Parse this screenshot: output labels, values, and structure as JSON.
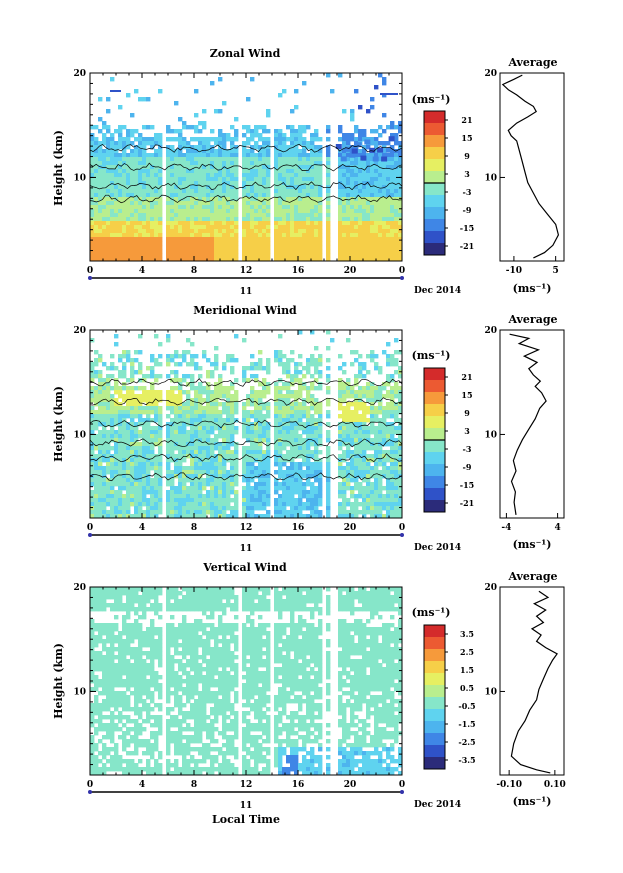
{
  "figure": {
    "x_axis_label": "Local Time",
    "date_label": "Dec 2014",
    "day_label": "11"
  },
  "colors": {
    "scale": [
      "#2b2b7a",
      "#2f52c8",
      "#3f86e6",
      "#4db4ee",
      "#5fd3ef",
      "#86e6c9",
      "#b9ee8e",
      "#e6ef62",
      "#f6cf48",
      "#f69a3b",
      "#ec5a32",
      "#d42b2b"
    ]
  },
  "chart_data": [
    {
      "type": "heatmap",
      "title": "Zonal Wind",
      "ylabel": "Height (km)",
      "x_ticks": [
        "0",
        "4",
        "8",
        "12",
        "16",
        "20",
        "0"
      ],
      "xlim": [
        0,
        24
      ],
      "y_ticks": [
        "20",
        "10"
      ],
      "ylim": [
        2,
        20
      ],
      "unit_label": "(ms⁻¹)",
      "colorbar_ticks": [
        "21",
        "15",
        "9",
        "3",
        "-3",
        "-9",
        "-15",
        "-21"
      ],
      "colorbar_range": [
        -24,
        24
      ],
      "profile": {
        "title": "Average",
        "x_ticks": [
          "-10",
          "5"
        ],
        "xlim": [
          -15,
          8
        ],
        "unit_label": "(ms⁻¹)",
        "y_ticks": [
          "20",
          "10"
        ],
        "points": [
          [
            -3,
            2.3
          ],
          [
            1,
            2.8
          ],
          [
            4,
            3.5
          ],
          [
            6,
            4.5
          ],
          [
            5,
            5.5
          ],
          [
            2,
            6.5
          ],
          [
            -1,
            7.5
          ],
          [
            -3,
            8.5
          ],
          [
            -5,
            9.5
          ],
          [
            -6,
            10.5
          ],
          [
            -7,
            11.5
          ],
          [
            -8,
            12.5
          ],
          [
            -9,
            13.5
          ],
          [
            -11,
            14.0
          ],
          [
            -12,
            14.5
          ],
          [
            -9,
            15.2
          ],
          [
            -5,
            15.8
          ],
          [
            -2,
            16.3
          ],
          [
            -3,
            16.8
          ],
          [
            -6,
            17.3
          ],
          [
            -9,
            17.9
          ],
          [
            -12,
            18.4
          ],
          [
            -14,
            18.9
          ],
          [
            -10,
            19.4
          ],
          [
            -7,
            19.8
          ]
        ]
      }
    },
    {
      "type": "heatmap",
      "title": "Meridional Wind",
      "ylabel": "Height (km)",
      "x_ticks": [
        "0",
        "4",
        "8",
        "12",
        "16",
        "20",
        "0"
      ],
      "xlim": [
        0,
        24
      ],
      "y_ticks": [
        "20",
        "10"
      ],
      "ylim": [
        2,
        20
      ],
      "unit_label": "(ms⁻¹)",
      "colorbar_ticks": [
        "21",
        "15",
        "9",
        "3",
        "-3",
        "-9",
        "-15",
        "-21"
      ],
      "colorbar_range": [
        -24,
        24
      ],
      "profile": {
        "title": "Average",
        "x_ticks": [
          "-4",
          "4"
        ],
        "xlim": [
          -5,
          5
        ],
        "unit_label": "(ms⁻¹)",
        "y_ticks": [
          "20",
          "10"
        ],
        "points": [
          [
            -2.5,
            2.3
          ],
          [
            -2.8,
            3.5
          ],
          [
            -2.6,
            4.5
          ],
          [
            -3.2,
            5.5
          ],
          [
            -2.5,
            6.5
          ],
          [
            -2.9,
            7.5
          ],
          [
            -2.3,
            8.5
          ],
          [
            -1.5,
            9.5
          ],
          [
            -0.5,
            10.5
          ],
          [
            0.5,
            11.5
          ],
          [
            1.2,
            12.5
          ],
          [
            2.2,
            13.2
          ],
          [
            1.5,
            14.0
          ],
          [
            0.5,
            14.6
          ],
          [
            1.3,
            15.1
          ],
          [
            0.2,
            15.7
          ],
          [
            -0.5,
            16.3
          ],
          [
            0.8,
            16.9
          ],
          [
            -1.2,
            17.5
          ],
          [
            1.0,
            18.1
          ],
          [
            -2.0,
            18.7
          ],
          [
            -0.5,
            19.2
          ],
          [
            -3.5,
            19.6
          ]
        ]
      }
    },
    {
      "type": "heatmap",
      "title": "Vertical Wind",
      "ylabel": "Height (km)",
      "x_ticks": [
        "0",
        "4",
        "8",
        "12",
        "16",
        "20",
        "0"
      ],
      "xlim": [
        0,
        24
      ],
      "y_ticks": [
        "20",
        "10"
      ],
      "ylim": [
        2,
        20
      ],
      "unit_label": "(ms⁻¹)",
      "colorbar_ticks": [
        "3.5",
        "2.5",
        "1.5",
        "0.5",
        "-0.5",
        "-1.5",
        "-2.5",
        "-3.5"
      ],
      "colorbar_range": [
        -4,
        4
      ],
      "profile": {
        "title": "Average",
        "x_ticks": [
          "-0.10",
          "0.10"
        ],
        "xlim": [
          -0.14,
          0.14
        ],
        "unit_label": "(ms⁻¹)",
        "y_ticks": [
          "20",
          "10"
        ],
        "points": [
          [
            0.08,
            2.2
          ],
          [
            0.02,
            2.5
          ],
          [
            -0.05,
            3.0
          ],
          [
            -0.09,
            3.8
          ],
          [
            -0.08,
            5.0
          ],
          [
            -0.06,
            6.2
          ],
          [
            -0.03,
            7.2
          ],
          [
            -0.01,
            8.2
          ],
          [
            0.02,
            9.2
          ],
          [
            0.03,
            10.2
          ],
          [
            0.05,
            11.2
          ],
          [
            0.07,
            12.2
          ],
          [
            0.09,
            13.0
          ],
          [
            0.11,
            13.6
          ],
          [
            0.06,
            14.2
          ],
          [
            0.02,
            14.8
          ],
          [
            0.04,
            15.4
          ],
          [
            0.0,
            16.0
          ],
          [
            0.05,
            16.6
          ],
          [
            0.02,
            17.2
          ],
          [
            0.06,
            17.8
          ],
          [
            0.01,
            18.4
          ],
          [
            0.07,
            19.0
          ],
          [
            0.03,
            19.6
          ]
        ]
      }
    }
  ]
}
